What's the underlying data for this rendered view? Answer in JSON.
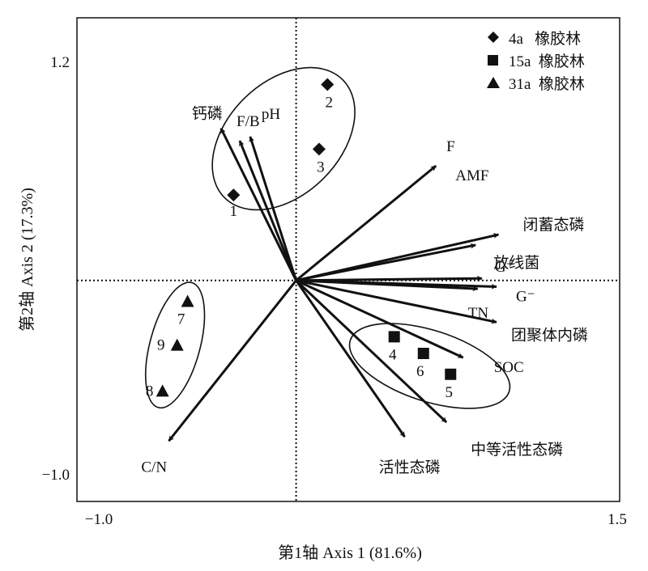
{
  "chart_data": {
    "type": "biplot",
    "xlabel": "第1轴 Axis 1 (81.6%)",
    "ylabel": "第2轴 Axis 2 (17.3%)",
    "xlim": [
      -1.0,
      1.5
    ],
    "ylim": [
      -1.0,
      1.2
    ],
    "x_tick_labels": [
      "−1.0",
      "1.5"
    ],
    "y_tick_labels": [
      "1.2",
      "−1.0"
    ],
    "reference_lines": {
      "x": 0,
      "y": 0,
      "style": "dotted"
    },
    "legend": {
      "position": "top-right",
      "entries": [
        {
          "label": "4a   橡胶林",
          "marker": "diamond"
        },
        {
          "label": "15a  橡胶林",
          "marker": "square"
        },
        {
          "label": "31a  橡胶林",
          "marker": "triangle"
        }
      ]
    },
    "samples": [
      {
        "label": "1",
        "group": 0,
        "x": -0.3,
        "y": 0.41
      },
      {
        "label": "2",
        "group": 0,
        "x": 0.15,
        "y": 0.94
      },
      {
        "label": "3",
        "group": 0,
        "x": 0.11,
        "y": 0.63
      },
      {
        "label": "4",
        "group": 1,
        "x": 0.47,
        "y": -0.27
      },
      {
        "label": "6",
        "group": 1,
        "x": 0.61,
        "y": -0.35
      },
      {
        "label": "5",
        "group": 1,
        "x": 0.74,
        "y": -0.45
      },
      {
        "label": "7",
        "group": 2,
        "x": -0.52,
        "y": -0.1
      },
      {
        "label": "9",
        "group": 2,
        "x": -0.57,
        "y": -0.31
      },
      {
        "label": "8",
        "group": 2,
        "x": -0.64,
        "y": -0.53
      }
    ],
    "vectors": [
      {
        "label": "钙磷",
        "x": -0.36,
        "y": 0.73
      },
      {
        "label": "F/B",
        "x": -0.27,
        "y": 0.67
      },
      {
        "label": "pH",
        "x": -0.22,
        "y": 0.69
      },
      {
        "label": "F",
        "x": 0.0,
        "y": 0.0,
        "hidden": true
      },
      {
        "label": "AMF",
        "x": 0.67,
        "y": 0.55
      },
      {
        "label": "闭蓄态磷",
        "x": 0.97,
        "y": 0.22
      },
      {
        "label": "放线菌",
        "x": 0.86,
        "y": 0.17
      },
      {
        "label": "G⁺",
        "x": 0.89,
        "y": 0.01
      },
      {
        "label": "G⁻",
        "x": 0.96,
        "y": -0.03
      },
      {
        "label": "TN",
        "x": 0.87,
        "y": -0.04
      },
      {
        "label": "团聚体内磷",
        "x": 0.96,
        "y": -0.2
      },
      {
        "label": "SOC",
        "x": 0.8,
        "y": -0.37
      },
      {
        "label": "中等活性态磷",
        "x": 0.72,
        "y": -0.68
      },
      {
        "label": "活性态磷",
        "x": 0.52,
        "y": -0.75
      },
      {
        "label": "C/N",
        "x": -0.61,
        "y": -0.77
      }
    ],
    "ellipses": [
      {
        "group": 0,
        "cx": -0.06,
        "cy": 0.68,
        "rx": 0.4,
        "ry": 0.27,
        "rotation": -45
      },
      {
        "group": 1,
        "cx": 0.64,
        "cy": -0.41,
        "rx": 0.4,
        "ry": 0.17,
        "rotation": 18
      },
      {
        "group": 2,
        "cx": -0.58,
        "cy": -0.31,
        "rx": 0.12,
        "ry": 0.31,
        "rotation": 15
      }
    ]
  }
}
